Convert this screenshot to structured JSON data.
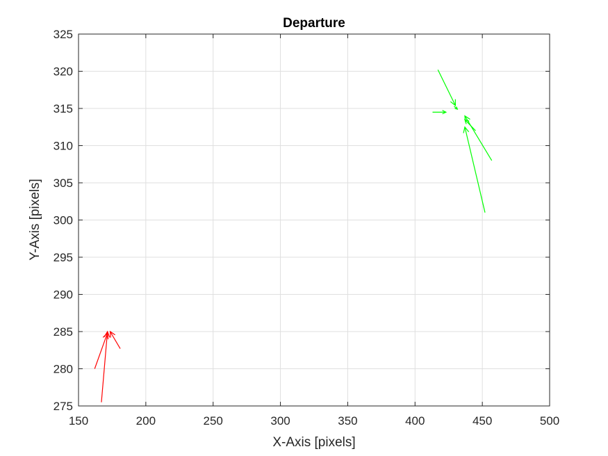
{
  "chart_data": {
    "type": "quiver",
    "title": "Departure",
    "xlabel": "X-Axis [pixels]",
    "ylabel": "Y-Axis [pixels]",
    "xlim": [
      150,
      500
    ],
    "ylim": [
      275,
      325
    ],
    "xticks": [
      150,
      200,
      250,
      300,
      350,
      400,
      450,
      500
    ],
    "yticks": [
      275,
      280,
      285,
      290,
      295,
      300,
      305,
      310,
      315,
      320,
      325
    ],
    "grid": true,
    "series": [
      {
        "color": "#ff0000",
        "vectors": [
          {
            "x": 162,
            "y": 280,
            "dx": 9.5,
            "dy": 4.8
          },
          {
            "x": 167,
            "y": 275.5,
            "dx": 4.5,
            "dy": 9.5
          },
          {
            "x": 181,
            "y": 282.7,
            "dx": -7.5,
            "dy": 2.3
          }
        ]
      },
      {
        "color": "#00ff00",
        "vectors": [
          {
            "x": 417,
            "y": 320.2,
            "dx": 13,
            "dy": -4.8
          },
          {
            "x": 413,
            "y": 314.5,
            "dx": 10,
            "dy": 0
          },
          {
            "x": 429,
            "y": 315.3,
            "dx": 2.5,
            "dy": -0.4
          },
          {
            "x": 452,
            "y": 301,
            "dx": -15,
            "dy": 11.5
          },
          {
            "x": 457,
            "y": 308,
            "dx": -20,
            "dy": 6
          },
          {
            "x": 445,
            "y": 312,
            "dx": -8,
            "dy": 1.5
          }
        ]
      }
    ]
  }
}
